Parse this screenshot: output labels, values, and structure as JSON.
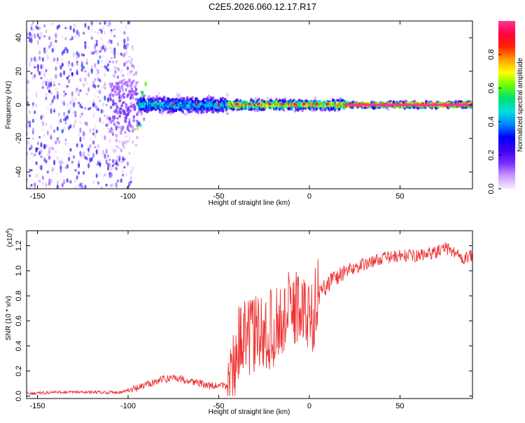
{
  "page": {
    "title": "C2E5.2026.060.12.17.R17"
  },
  "colors": {
    "background": "#ffffff",
    "snr_line": "#ee3333",
    "spectrogram_colormap": [
      "#f4ecff",
      "#cc99ff",
      "#7a2cff",
      "#3a00ee",
      "#0000ff",
      "#0088ff",
      "#00e0e0",
      "#00e070",
      "#66ff00",
      "#ffff00",
      "#ffa000",
      "#ff2000",
      "#ff0044",
      "#ff3399"
    ]
  },
  "chart_data": [
    {
      "type": "heatmap",
      "title": "",
      "xlabel": "Height of straight line (km)",
      "ylabel": "Frequency (Hz)",
      "xlim": [
        -156,
        90
      ],
      "ylim": [
        -50,
        50
      ],
      "xticks": [
        -150,
        -100,
        -50,
        0,
        50
      ],
      "yticks": [
        -40,
        -20,
        0,
        20,
        40
      ],
      "colorbar": {
        "label": "Normalized spectral amplitude",
        "range": [
          0,
          1
        ],
        "ticks": [
          "0.0",
          "0.2",
          "0.4",
          "0.6",
          "0.8"
        ]
      },
      "description_bands": [
        {
          "x_range": [
            -156,
            -95
          ],
          "freq_spread_hz": 50,
          "peak_amplitude": 0.25
        },
        {
          "x_range": [
            -95,
            -45
          ],
          "freq_spread_hz": 8,
          "peak_amplitude": 0.55
        },
        {
          "x_range": [
            -45,
            20
          ],
          "freq_spread_hz": 5,
          "peak_amplitude": 0.9
        },
        {
          "x_range": [
            20,
            90
          ],
          "freq_spread_hz": 3,
          "peak_amplitude": 1.0
        }
      ]
    },
    {
      "type": "line",
      "title": "",
      "xlabel": "Height of straight line (km)",
      "ylabel": "SNR (10 * v/v)",
      "yscale_label": "(x10",
      "yscale_exponent": "4",
      "yscale_suffix": ")",
      "xlim": [
        -156,
        90
      ],
      "ylim": [
        -0.02,
        1.32
      ],
      "xticks": [
        -150,
        -100,
        -50,
        0,
        50
      ],
      "yticks": [
        "0.0",
        "0.2",
        "0.4",
        "0.6",
        "0.8",
        "1.0",
        "1.2"
      ],
      "series": [
        {
          "x": [
            -156,
            -140,
            -120,
            -105,
            -95,
            -85,
            -75,
            -65,
            -55,
            -45,
            -42,
            -40,
            -35,
            -30,
            -25,
            -20,
            -15,
            -10,
            -5,
            0,
            5,
            10,
            15,
            20,
            30,
            40,
            50,
            60,
            70,
            75,
            80,
            85,
            90
          ],
          "values": [
            0.02,
            0.03,
            0.03,
            0.03,
            0.06,
            0.12,
            0.15,
            0.12,
            0.08,
            0.08,
            0.2,
            0.4,
            0.45,
            0.5,
            0.48,
            0.55,
            0.6,
            0.7,
            0.72,
            0.6,
            0.8,
            0.9,
            0.95,
            1.0,
            1.05,
            1.1,
            1.12,
            1.12,
            1.15,
            1.18,
            1.15,
            1.1,
            1.12
          ]
        }
      ]
    }
  ]
}
